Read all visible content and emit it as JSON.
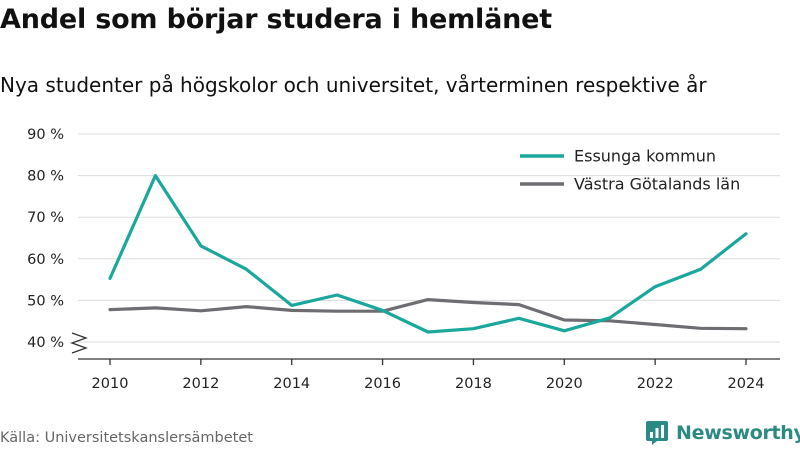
{
  "title": "Andel som börjar studera i hemlänet",
  "subtitle": "Nya studenter på högskolor och universitet, vårterminen respektive år",
  "source": "Källa: Universitetskanslersämbetet",
  "brand": {
    "name": "Newsworthy",
    "logo_icon": "newsworthy-chart-logo-icon",
    "color": "#2c8a84"
  },
  "chart_data": {
    "type": "line",
    "x": [
      2010,
      2011,
      2012,
      2013,
      2014,
      2015,
      2016,
      2017,
      2018,
      2019,
      2020,
      2021,
      2022,
      2023,
      2024
    ],
    "xticks": [
      2010,
      2012,
      2014,
      2016,
      2018,
      2020,
      2022,
      2024
    ],
    "yticks": [
      "40 %",
      "50 %",
      "60 %",
      "70 %",
      "80 %",
      "90 %"
    ],
    "ytick_values": [
      40,
      50,
      60,
      70,
      80,
      90
    ],
    "ylim": [
      37,
      92
    ],
    "y_axis_break": true,
    "grid": true,
    "legend_position": "top-right",
    "series": [
      {
        "name": "Essunga kommun",
        "color": "#1aa79c",
        "values": [
          55.3,
          80.0,
          63.1,
          57.5,
          48.8,
          51.3,
          47.6,
          42.4,
          43.2,
          45.7,
          42.7,
          45.8,
          53.3,
          57.5,
          66.0
        ]
      },
      {
        "name": "Västra Götalands län",
        "color": "#6e6d72",
        "values": [
          47.8,
          48.2,
          47.5,
          48.5,
          47.6,
          47.4,
          47.4,
          50.2,
          49.5,
          49.0,
          45.3,
          45.1,
          44.2,
          43.3,
          43.2
        ]
      }
    ]
  }
}
